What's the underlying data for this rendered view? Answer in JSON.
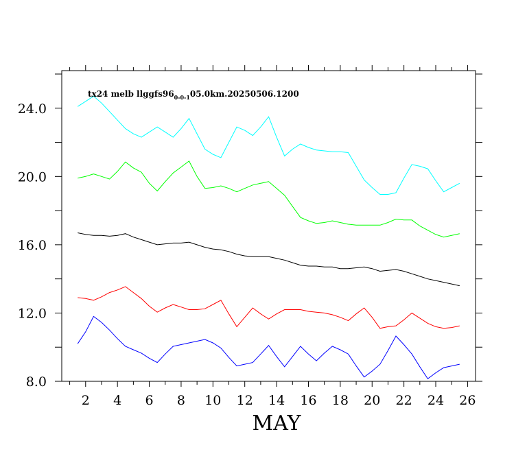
{
  "chart_data": {
    "type": "line",
    "title": "tx24 melb llggfs96",
    "title_sub": "0-0-1",
    "title_rest": "05.0km.20250506.1200",
    "xlabel": "MAY",
    "ylabel": "",
    "xlim": [
      0.5,
      26.5
    ],
    "ylim": [
      8.0,
      26.2
    ],
    "x_ticks": [
      2,
      4,
      6,
      8,
      10,
      12,
      14,
      16,
      18,
      20,
      22,
      24,
      26
    ],
    "y_ticks": [
      8.0,
      12.0,
      16.0,
      20.0,
      24.0
    ],
    "y_tick_labels": [
      "8.0",
      "12.0",
      "16.0",
      "20.0",
      "24.0"
    ],
    "grid": false,
    "x": [
      1.5,
      2,
      2.5,
      3,
      3.5,
      4,
      4.5,
      5,
      5.5,
      6,
      6.5,
      7,
      7.5,
      8,
      8.5,
      9,
      9.5,
      10,
      10.5,
      11,
      11.5,
      12,
      12.5,
      13,
      13.5,
      14,
      14.5,
      15,
      15.5,
      16,
      16.5,
      17,
      17.5,
      18,
      18.5,
      19,
      19.5,
      20,
      20.5,
      21,
      21.5,
      22,
      22.5,
      23,
      23.5,
      24,
      24.5,
      25,
      25.5
    ],
    "series": [
      {
        "color": "#00ffff",
        "values": [
          24.1,
          24.4,
          24.7,
          24.3,
          23.8,
          23.3,
          22.8,
          22.5,
          22.3,
          22.6,
          22.9,
          22.6,
          22.3,
          22.8,
          23.4,
          22.5,
          21.6,
          21.3,
          21.1,
          22.0,
          22.9,
          22.7,
          22.4,
          22.9,
          23.5,
          22.3,
          21.2,
          21.6,
          21.9,
          21.7,
          21.55,
          21.5,
          21.45,
          21.45,
          21.4,
          20.6,
          19.8,
          19.35,
          18.95,
          18.95,
          19.05,
          19.9,
          20.7,
          20.6,
          20.45,
          19.75,
          19.1,
          19.35,
          19.6
        ]
      },
      {
        "color": "#00ff00",
        "values": [
          19.9,
          20.0,
          20.15,
          20.0,
          19.85,
          20.3,
          20.85,
          20.5,
          20.25,
          19.6,
          19.15,
          19.7,
          20.2,
          20.55,
          20.9,
          20.0,
          19.3,
          19.35,
          19.45,
          19.3,
          19.1,
          19.3,
          19.5,
          19.6,
          19.7,
          19.3,
          18.9,
          18.25,
          17.6,
          17.4,
          17.25,
          17.3,
          17.4,
          17.3,
          17.2,
          17.15,
          17.15,
          17.15,
          17.15,
          17.3,
          17.5,
          17.45,
          17.45,
          17.1,
          16.85,
          16.6,
          16.45,
          16.55,
          16.65
        ]
      },
      {
        "color": "#000000",
        "values": [
          16.7,
          16.6,
          16.55,
          16.55,
          16.5,
          16.55,
          16.65,
          16.45,
          16.3,
          16.15,
          16.0,
          16.05,
          16.1,
          16.1,
          16.15,
          16.0,
          15.85,
          15.75,
          15.7,
          15.6,
          15.45,
          15.35,
          15.3,
          15.3,
          15.3,
          15.2,
          15.1,
          14.95,
          14.8,
          14.75,
          14.75,
          14.7,
          14.7,
          14.6,
          14.6,
          14.65,
          14.7,
          14.6,
          14.45,
          14.5,
          14.55,
          14.45,
          14.3,
          14.15,
          14.0,
          13.9,
          13.8,
          13.7,
          13.6
        ]
      },
      {
        "color": "#ff0000",
        "values": [
          12.9,
          12.85,
          12.75,
          12.95,
          13.2,
          13.35,
          13.55,
          13.2,
          12.85,
          12.4,
          12.05,
          12.3,
          12.5,
          12.35,
          12.2,
          12.2,
          12.25,
          12.5,
          12.75,
          11.95,
          11.2,
          11.75,
          12.3,
          11.95,
          11.65,
          11.95,
          12.2,
          12.2,
          12.2,
          12.1,
          12.05,
          12.0,
          11.9,
          11.75,
          11.55,
          11.95,
          12.3,
          11.75,
          11.1,
          11.2,
          11.25,
          11.6,
          12.0,
          11.7,
          11.4,
          11.2,
          11.1,
          11.15,
          11.25
        ]
      },
      {
        "color": "#0000ff",
        "values": [
          10.2,
          10.9,
          11.8,
          11.45,
          11.0,
          10.5,
          10.05,
          9.85,
          9.65,
          9.35,
          9.1,
          9.6,
          10.05,
          10.15,
          10.25,
          10.35,
          10.45,
          10.25,
          9.95,
          9.4,
          8.9,
          9.0,
          9.1,
          9.6,
          10.1,
          9.45,
          8.85,
          9.45,
          10.05,
          9.6,
          9.2,
          9.65,
          10.05,
          9.85,
          9.6,
          8.9,
          8.25,
          8.6,
          9.0,
          9.8,
          10.65,
          10.15,
          9.6,
          8.85,
          8.15,
          8.5,
          8.8,
          8.9,
          9.0
        ]
      }
    ]
  }
}
